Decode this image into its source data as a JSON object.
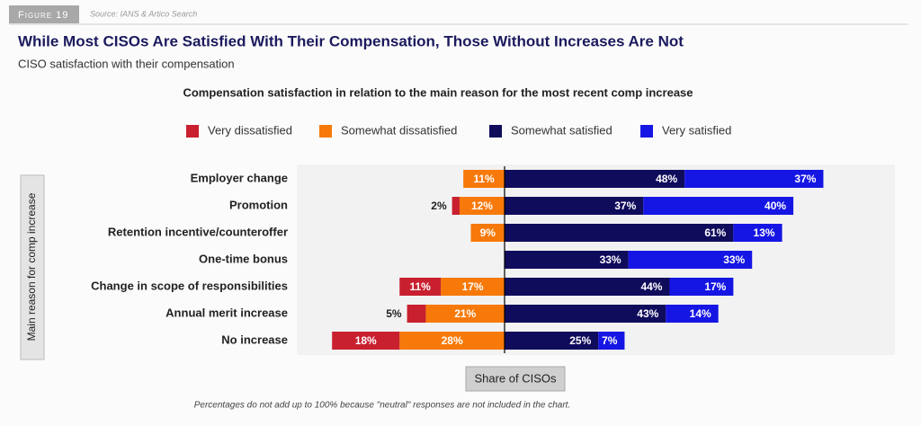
{
  "figure_label": "Figure 19",
  "source": "Source: IANS & Artico Search",
  "footnote": "Percentages do not add up to 100% because \"neutral\" responses are not included in the chart.",
  "chart_data": {
    "type": "diverging-bar",
    "title": "While Most CISOs Are Satisfied With Their Compensation, Those Without Increases Are Not",
    "subtitle": "CISO satisfaction with their compensation",
    "chart_title": "Compensation satisfaction in relation to the main reason for the most recent comp increase",
    "y_label": "Main reason for comp increase",
    "x_label": "Share of CISOs",
    "categories": [
      "Employer change",
      "Promotion",
      "Retention incentive/counteroffer",
      "One-time bonus",
      "Change in scope of responsibilities",
      "Annual merit increase",
      "No increase"
    ],
    "series": [
      {
        "name": "Very dissatisfied",
        "color": "#c8202f",
        "side": "negative",
        "values": [
          null,
          2,
          null,
          null,
          11,
          5,
          18
        ],
        "value_labels": [
          null,
          "2%",
          null,
          null,
          "11%",
          "5%",
          "18%"
        ]
      },
      {
        "name": "Somewhat dissatisfied",
        "color": "#f7790a",
        "side": "negative",
        "values": [
          11,
          12,
          9,
          null,
          17,
          21,
          28
        ],
        "value_labels": [
          "11%",
          "12%",
          "9%",
          null,
          "17%",
          "21%",
          "28%"
        ]
      },
      {
        "name": "Somewhat satisfied",
        "color": "#100c5c",
        "side": "positive",
        "values": [
          48,
          37,
          61,
          33,
          44,
          43,
          25
        ],
        "value_labels": [
          "48%",
          "37%",
          "61%",
          "33%",
          "44%",
          "43%",
          "25%"
        ]
      },
      {
        "name": "Very satisfied",
        "color": "#1616e4",
        "side": "positive",
        "values": [
          37,
          40,
          13,
          33,
          17,
          14,
          7
        ],
        "value_labels": [
          "37%",
          "40%",
          "13%",
          "33%",
          "17%",
          "14%",
          "7%"
        ]
      }
    ]
  }
}
